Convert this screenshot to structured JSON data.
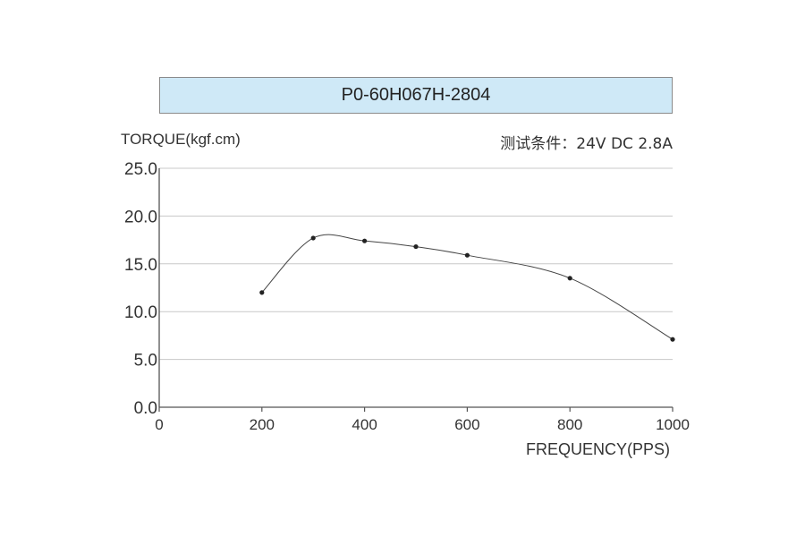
{
  "chart_title": "P0-60H067H-2804",
  "y_axis_label": "TORQUE(kgf.cm)",
  "test_condition": "测试条件：24V DC  2.8A",
  "x_axis_label": "FREQUENCY(PPS)",
  "chart_data": {
    "type": "line",
    "title": "P0-60H067H-2804",
    "xlabel": "FREQUENCY(PPS)",
    "ylabel": "TORQUE(kgf.cm)",
    "annotation": "测试条件：24V DC  2.8A",
    "xlim": [
      0,
      1000
    ],
    "ylim": [
      0,
      25
    ],
    "x_ticks": [
      0,
      200,
      400,
      600,
      800,
      1000
    ],
    "x_tick_labels": [
      "0",
      "200",
      "400",
      "600",
      "800",
      "1000"
    ],
    "y_ticks": [
      0,
      5,
      10,
      15,
      20,
      25
    ],
    "y_tick_labels": [
      "0.0",
      "5.0",
      "10.0",
      "15.0",
      "20.0",
      "25.0"
    ],
    "grid": "horizontal",
    "series": [
      {
        "x": [
          200,
          300,
          400,
          500,
          600,
          800,
          1000
        ],
        "y": [
          12.0,
          17.7,
          17.4,
          16.8,
          15.9,
          13.5,
          7.1
        ]
      }
    ],
    "colors": {
      "line": "#444444",
      "grid": "#c8c8c8",
      "title_bg": "#cfe9f7"
    }
  }
}
